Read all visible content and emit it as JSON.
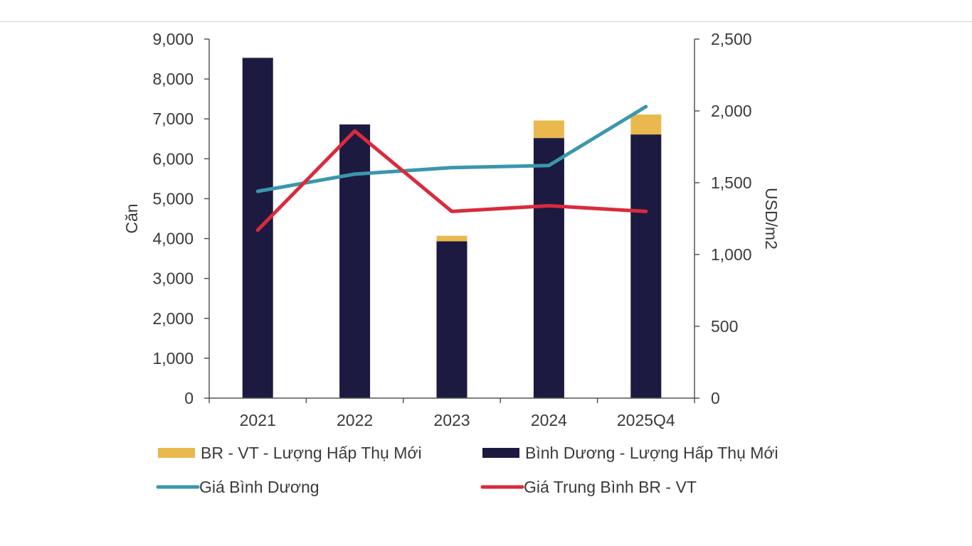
{
  "chart_data": {
    "type": "bar",
    "categories": [
      "2021",
      "2022",
      "2023",
      "2024",
      "2025Q4"
    ],
    "y_left": {
      "label": "Căn",
      "ylim": [
        0,
        9000
      ],
      "ticks": [
        0,
        1000,
        2000,
        3000,
        4000,
        5000,
        6000,
        7000,
        8000,
        9000
      ],
      "tick_labels": [
        "0",
        "1,000",
        "2,000",
        "3,000",
        "4,000",
        "5,000",
        "6,000",
        "7,000",
        "8,000",
        "9,000"
      ]
    },
    "y_right": {
      "label": "USD/m2",
      "ylim": [
        0,
        2500
      ],
      "ticks": [
        0,
        500,
        1000,
        1500,
        2000,
        2500
      ],
      "tick_labels": [
        "0",
        "500",
        "1,000",
        "1,500",
        "2,000",
        "2,500"
      ]
    },
    "series": [
      {
        "name": "Bình Dương - Lượng Hấp Thụ Mới",
        "type": "bar",
        "stack": "absorb",
        "axis": "left",
        "color": "#1c1a40",
        "values": [
          8530,
          6860,
          3930,
          6520,
          6610
        ]
      },
      {
        "name": "BR - VT - Lượng Hấp Thụ Mới",
        "type": "bar",
        "stack": "absorb",
        "axis": "left",
        "color": "#e9b84e",
        "values": [
          0,
          0,
          140,
          440,
          500
        ]
      },
      {
        "name": "Giá Bình Dương",
        "type": "line",
        "axis": "right",
        "color": "#3a97ad",
        "values": [
          1440,
          1560,
          1605,
          1620,
          2030
        ]
      },
      {
        "name": "Giá Trung Bình  BR - VT",
        "type": "line",
        "axis": "right",
        "color": "#d92b3a",
        "values": [
          1170,
          1860,
          1300,
          1340,
          1300
        ]
      }
    ],
    "legend": {
      "placement": "bottom",
      "items": [
        {
          "label": "BR - VT - Lượng Hấp Thụ Mới",
          "kind": "bar",
          "color": "#e9b84e"
        },
        {
          "label": "Bình Dương - Lượng Hấp Thụ Mới",
          "kind": "bar",
          "color": "#1c1a40"
        },
        {
          "label": "Giá Bình Dương",
          "kind": "line",
          "color": "#3a97ad"
        },
        {
          "label": "Giá Trung Bình  BR - VT",
          "kind": "line",
          "color": "#d92b3a"
        }
      ]
    }
  }
}
